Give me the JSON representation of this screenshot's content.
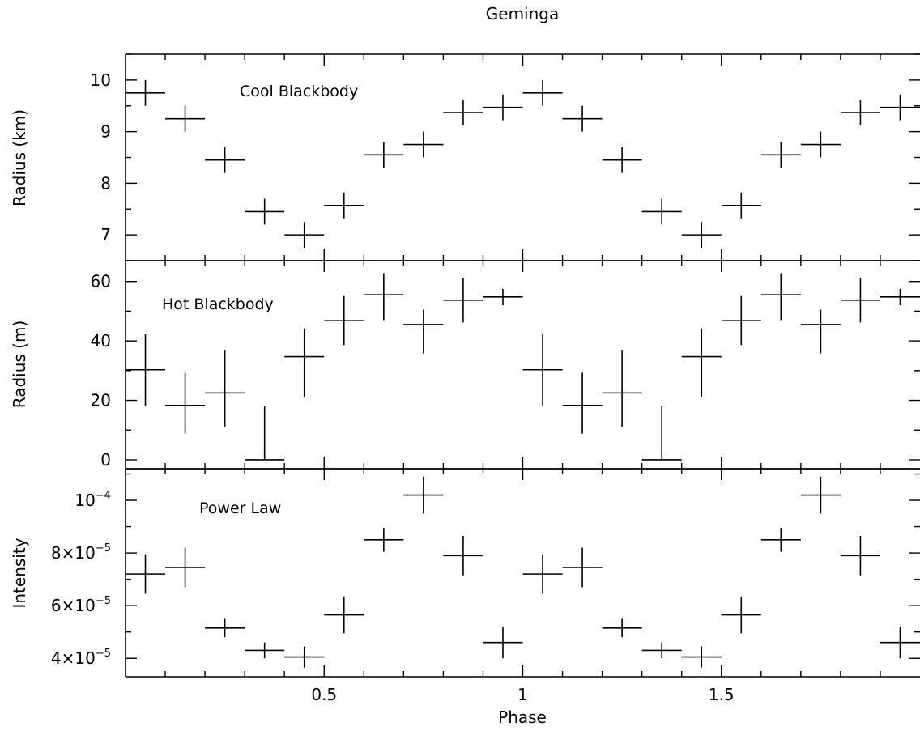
{
  "title": "Geminga",
  "xlabel": "Phase",
  "x_tick_labels": [
    "0.5",
    "1",
    "1.5"
  ],
  "chart_data": [
    {
      "type": "scatter",
      "panel_label": "Cool Blackbody",
      "ylabel": "Radius (km)",
      "xlim": [
        0,
        2
      ],
      "ylim": [
        6.5,
        10.5
      ],
      "y_ticks": [
        {
          "value": 7,
          "label": "7"
        },
        {
          "value": 8,
          "label": "8"
        },
        {
          "value": 9,
          "label": "9"
        },
        {
          "value": 10,
          "label": "10"
        }
      ],
      "x_err": 0.05,
      "points": [
        {
          "x": 0.05,
          "y": 9.75,
          "yerr": 0.25
        },
        {
          "x": 0.15,
          "y": 9.25,
          "yerr": 0.25
        },
        {
          "x": 0.25,
          "y": 8.45,
          "yerr": 0.25
        },
        {
          "x": 0.35,
          "y": 7.45,
          "yerr": 0.25
        },
        {
          "x": 0.45,
          "y": 7.0,
          "yerr": 0.25
        },
        {
          "x": 0.55,
          "y": 7.57,
          "yerr": 0.25
        },
        {
          "x": 0.65,
          "y": 8.55,
          "yerr": 0.25
        },
        {
          "x": 0.75,
          "y": 8.75,
          "yerr": 0.25
        },
        {
          "x": 0.85,
          "y": 9.37,
          "yerr": 0.25
        },
        {
          "x": 0.95,
          "y": 9.47,
          "yerr": 0.25
        },
        {
          "x": 1.05,
          "y": 9.75,
          "yerr": 0.25
        },
        {
          "x": 1.15,
          "y": 9.25,
          "yerr": 0.25
        },
        {
          "x": 1.25,
          "y": 8.45,
          "yerr": 0.25
        },
        {
          "x": 1.35,
          "y": 7.45,
          "yerr": 0.25
        },
        {
          "x": 1.45,
          "y": 7.0,
          "yerr": 0.25
        },
        {
          "x": 1.55,
          "y": 7.57,
          "yerr": 0.25
        },
        {
          "x": 1.65,
          "y": 8.55,
          "yerr": 0.25
        },
        {
          "x": 1.75,
          "y": 8.75,
          "yerr": 0.25
        },
        {
          "x": 1.85,
          "y": 9.37,
          "yerr": 0.25
        },
        {
          "x": 1.95,
          "y": 9.47,
          "yerr": 0.25
        }
      ]
    },
    {
      "type": "scatter",
      "panel_label": "Hot Blackbody",
      "ylabel": "Radius (m)",
      "xlim": [
        0,
        2
      ],
      "ylim": [
        -3,
        67
      ],
      "y_ticks": [
        {
          "value": 0,
          "label": "0"
        },
        {
          "value": 20,
          "label": "20"
        },
        {
          "value": 40,
          "label": "40"
        },
        {
          "value": 60,
          "label": "60"
        }
      ],
      "x_err": 0.05,
      "points": [
        {
          "x": 0.05,
          "y": 30.3,
          "yerr_up": 12,
          "yerr_down": 12
        },
        {
          "x": 0.15,
          "y": 18.3,
          "yerr_up": 11,
          "yerr_down": 9.5
        },
        {
          "x": 0.25,
          "y": 22.5,
          "yerr_up": 14.5,
          "yerr_down": 11.5
        },
        {
          "x": 0.35,
          "y": 0,
          "yerr_up": 18,
          "yerr_down": 0
        },
        {
          "x": 0.45,
          "y": 34.7,
          "yerr_up": 9.5,
          "yerr_down": 13.5
        },
        {
          "x": 0.55,
          "y": 46.8,
          "yerr_up": 8.3,
          "yerr_down": 8.2
        },
        {
          "x": 0.65,
          "y": 55.5,
          "yerr_up": 7.3,
          "yerr_down": 8.5
        },
        {
          "x": 0.75,
          "y": 45.5,
          "yerr_up": 5.0,
          "yerr_down": 9.7
        },
        {
          "x": 0.85,
          "y": 53.7,
          "yerr_up": 7.5,
          "yerr_down": 7.5
        },
        {
          "x": 0.95,
          "y": 54.8,
          "yerr_up": 2.7,
          "yerr_down": 2.8
        },
        {
          "x": 1.05,
          "y": 30.3,
          "yerr_up": 12,
          "yerr_down": 12
        },
        {
          "x": 1.15,
          "y": 18.3,
          "yerr_up": 11,
          "yerr_down": 9.5
        },
        {
          "x": 1.25,
          "y": 22.5,
          "yerr_up": 14.5,
          "yerr_down": 11.5
        },
        {
          "x": 1.35,
          "y": 0,
          "yerr_up": 18,
          "yerr_down": 0
        },
        {
          "x": 1.45,
          "y": 34.7,
          "yerr_up": 9.5,
          "yerr_down": 13.5
        },
        {
          "x": 1.55,
          "y": 46.8,
          "yerr_up": 8.3,
          "yerr_down": 8.2
        },
        {
          "x": 1.65,
          "y": 55.5,
          "yerr_up": 7.3,
          "yerr_down": 8.5
        },
        {
          "x": 1.75,
          "y": 45.5,
          "yerr_up": 5.0,
          "yerr_down": 9.7
        },
        {
          "x": 1.85,
          "y": 53.7,
          "yerr_up": 7.5,
          "yerr_down": 7.5
        },
        {
          "x": 1.95,
          "y": 54.8,
          "yerr_up": 2.7,
          "yerr_down": 2.8
        }
      ]
    },
    {
      "type": "scatter",
      "panel_label": "Power Law",
      "ylabel": "Intensity",
      "xlim": [
        0,
        2
      ],
      "ylim": [
        3.3e-05,
        0.000112
      ],
      "y_ticks": [
        {
          "value": 4e-05,
          "mant": "4",
          "exp": "−5"
        },
        {
          "value": 6e-05,
          "mant": "6",
          "exp": "−5"
        },
        {
          "value": 8e-05,
          "mant": "8",
          "exp": "−5"
        },
        {
          "value": 0.0001,
          "mant": "",
          "exp": "−4"
        }
      ],
      "x_err": 0.05,
      "points": [
        {
          "x": 0.05,
          "y": 7.2e-05,
          "yerr": 7.5e-06
        },
        {
          "x": 0.15,
          "y": 7.45e-05,
          "yerr": 7.5e-06
        },
        {
          "x": 0.25,
          "y": 5.15e-05,
          "yerr": 3.5e-06
        },
        {
          "x": 0.35,
          "y": 4.3e-05,
          "yerr": 3e-06
        },
        {
          "x": 0.45,
          "y": 4.05e-05,
          "yerr": 4e-06
        },
        {
          "x": 0.55,
          "y": 5.65e-05,
          "yerr": 7e-06
        },
        {
          "x": 0.65,
          "y": 8.5e-05,
          "yerr": 4.5e-06
        },
        {
          "x": 0.75,
          "y": 0.000102,
          "yerr": 7e-06
        },
        {
          "x": 0.85,
          "y": 7.9e-05,
          "yerr": 7.5e-06
        },
        {
          "x": 0.95,
          "y": 4.6e-05,
          "yerr": 6e-06
        },
        {
          "x": 1.05,
          "y": 7.2e-05,
          "yerr": 7.5e-06
        },
        {
          "x": 1.15,
          "y": 7.45e-05,
          "yerr": 7.5e-06
        },
        {
          "x": 1.25,
          "y": 5.15e-05,
          "yerr": 3.5e-06
        },
        {
          "x": 1.35,
          "y": 4.3e-05,
          "yerr": 3e-06
        },
        {
          "x": 1.45,
          "y": 4.05e-05,
          "yerr": 4e-06
        },
        {
          "x": 1.55,
          "y": 5.65e-05,
          "yerr": 7e-06
        },
        {
          "x": 1.65,
          "y": 8.5e-05,
          "yerr": 4.5e-06
        },
        {
          "x": 1.75,
          "y": 0.000102,
          "yerr": 7e-06
        },
        {
          "x": 1.85,
          "y": 7.9e-05,
          "yerr": 7.5e-06
        },
        {
          "x": 1.95,
          "y": 4.6e-05,
          "yerr": 6e-06
        }
      ]
    }
  ]
}
